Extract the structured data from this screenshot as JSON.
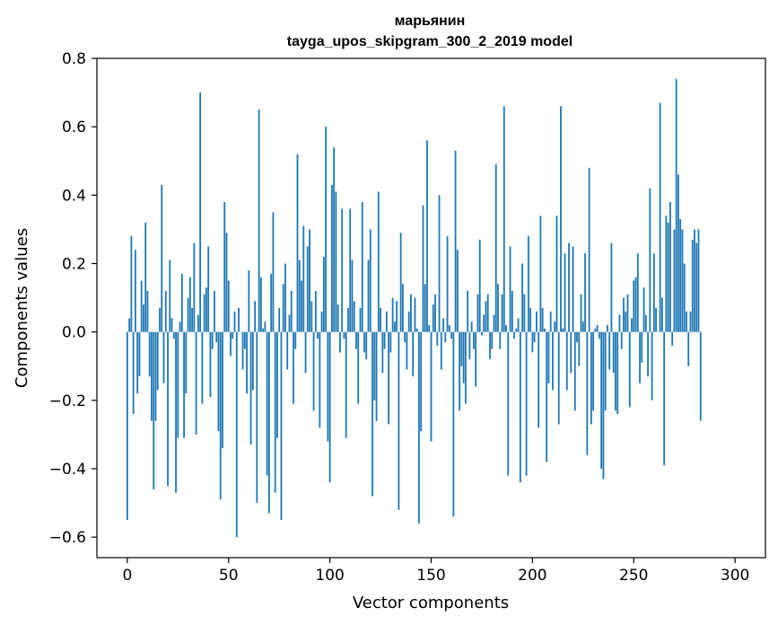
{
  "chart_data": {
    "type": "bar",
    "title": "марьянин",
    "subtitle": "tayga_upos_skipgram_300_2_2019 model",
    "xlabel": "Vector components",
    "ylabel": "Components values",
    "xlim": [
      -15,
      315
    ],
    "ylim": [
      -0.66,
      0.8
    ],
    "xticks": [
      0,
      50,
      100,
      150,
      200,
      250,
      300
    ],
    "yticks": [
      -0.6,
      -0.4,
      -0.2,
      0.0,
      0.2,
      0.4,
      0.6,
      0.8
    ],
    "ytick_labels": [
      "−0.6",
      "−0.4",
      "−0.2",
      "0.0",
      "0.2",
      "0.4",
      "0.6",
      "0.8"
    ],
    "bar_color": "#1f77b4",
    "grid": false,
    "values": [
      -0.55,
      0.04,
      0.28,
      -0.24,
      0.24,
      -0.18,
      -0.13,
      0.15,
      0.08,
      0.32,
      0.12,
      -0.13,
      -0.26,
      -0.46,
      -0.26,
      -0.17,
      0.07,
      0.43,
      -0.15,
      0.12,
      -0.45,
      0.21,
      0.04,
      -0.02,
      -0.47,
      -0.31,
      0.03,
      0.17,
      -0.31,
      -0.18,
      0.1,
      0.16,
      0.07,
      0.26,
      -0.3,
      0.05,
      0.7,
      -0.21,
      0.11,
      0.13,
      0.25,
      -0.19,
      -0.05,
      0.12,
      -0.03,
      -0.29,
      -0.49,
      -0.34,
      0.38,
      0.29,
      0.15,
      -0.07,
      -0.02,
      0.06,
      -0.6,
      0.07,
      0.0,
      -0.11,
      -0.05,
      -0.18,
      0.18,
      -0.33,
      -0.17,
      0.09,
      -0.5,
      0.65,
      0.16,
      0.01,
      0.03,
      -0.42,
      -0.53,
      0.17,
      0.35,
      -0.47,
      -0.31,
      0.07,
      -0.55,
      0.14,
      0.2,
      -0.11,
      0.05,
      0.12,
      -0.21,
      -0.05,
      0.52,
      0.21,
      0.15,
      0.31,
      -0.12,
      0.25,
      0.3,
      0.09,
      -0.23,
      0.12,
      -0.02,
      -0.28,
      0.06,
      0.22,
      0.6,
      -0.32,
      -0.44,
      0.43,
      0.54,
      0.41,
      0.08,
      -0.06,
      0.36,
      -0.02,
      -0.31,
      0.07,
      0.36,
      0.21,
      0.09,
      -0.05,
      -0.21,
      0.07,
      0.38,
      -0.06,
      -0.08,
      0.21,
      0.3,
      -0.48,
      -0.2,
      -0.26,
      0.41,
      0.07,
      -0.12,
      -0.05,
      0.06,
      -0.27,
      -0.06,
      0.1,
      0.03,
      0.09,
      -0.52,
      0.29,
      0.14,
      -0.03,
      -0.11,
      0.06,
      0.11,
      -0.13,
      0.1,
      0.01,
      -0.56,
      -0.29,
      0.37,
      0.14,
      0.56,
      0.02,
      -0.32,
      0.08,
      0.11,
      -0.04,
      0.4,
      -0.11,
      0.04,
      -0.03,
      0.28,
      0.02,
      -0.02,
      -0.54,
      0.53,
      0.24,
      -0.23,
      -0.1,
      -0.15,
      -0.21,
      0.12,
      -0.08,
      0.03,
      -0.05,
      -0.16,
      0.11,
      0.27,
      -0.01,
      0.05,
      0.09,
      0.11,
      -0.08,
      -0.05,
      0.05,
      0.49,
      0.14,
      -0.05,
      0.11,
      0.66,
      0.02,
      -0.42,
      0.25,
      0.12,
      -0.02,
      0.01,
      0.04,
      -0.44,
      0.2,
      0.11,
      -0.42,
      0.28,
      0.07,
      -0.06,
      -0.03,
      0.06,
      -0.28,
      0.34,
      0.07,
      0.01,
      -0.38,
      -0.15,
      0.06,
      -0.17,
      0.03,
      0.34,
      -0.27,
      0.66,
      0.01,
      0.23,
      -0.17,
      0.26,
      -0.12,
      0.25,
      -0.23,
      -0.03,
      -0.1,
      0.11,
      0.03,
      0.23,
      -0.36,
      0.48,
      -0.27,
      -0.23,
      0.01,
      0.02,
      -0.02,
      -0.4,
      -0.43,
      -0.23,
      0.02,
      -0.11,
      0.26,
      -0.12,
      -0.23,
      -0.24,
      0.05,
      -0.05,
      0.1,
      0.06,
      0.11,
      -0.22,
      0.04,
      0.15,
      0.16,
      0.23,
      -0.15,
      -0.09,
      0.13,
      0.05,
      -0.13,
      0.42,
      -0.2,
      0.23,
      0.07,
      0.0,
      0.67,
      0.1,
      -0.39,
      0.34,
      0.32,
      0.38,
      -0.04,
      0.3,
      0.74,
      0.46,
      0.33,
      0.3,
      0.2,
      0.06,
      -0.1,
      0.06,
      0.27,
      0.3,
      0.26,
      0.3,
      -0.26
    ]
  }
}
